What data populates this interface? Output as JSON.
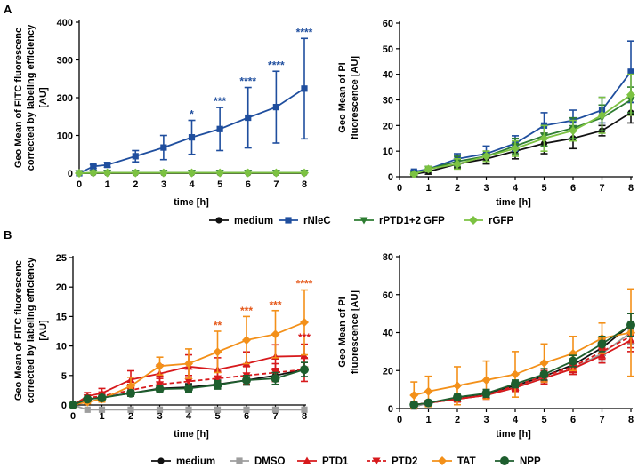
{
  "figure": {
    "panel_labels": [
      "A",
      "B"
    ],
    "time_label": "time [h]",
    "ylabel_fitc": [
      "Geo Mean of FITC fluorescenc",
      "corrected  by labeling efficiency",
      "[AU]"
    ],
    "ylabel_pi": [
      "Geo Mean of PI",
      "fluorescence [AU]"
    ],
    "legend_A": [
      {
        "name": "medium",
        "color": "#111111",
        "marker": "circle",
        "dash": false
      },
      {
        "name": "rNleC",
        "color": "#1f4e9e",
        "marker": "square",
        "dash": false
      },
      {
        "name": "rPTD1+2 GFP",
        "color": "#2e7d32",
        "marker": "triangle-down",
        "dash": false
      },
      {
        "name": "rGFP",
        "color": "#7cc242",
        "marker": "diamond",
        "dash": false
      }
    ],
    "legend_B": [
      {
        "name": "medium",
        "color": "#111111",
        "marker": "circle",
        "dash": false
      },
      {
        "name": "DMSO",
        "color": "#9e9e9e",
        "marker": "square",
        "dash": false
      },
      {
        "name": "PTD1",
        "color": "#d7191c",
        "marker": "triangle",
        "dash": false
      },
      {
        "name": "PTD2",
        "color": "#d7191c",
        "marker": "triangle-down",
        "dash": true
      },
      {
        "name": "TAT",
        "color": "#f39019",
        "marker": "diamond",
        "dash": false
      },
      {
        "name": "NPP",
        "color": "#1e5e2e",
        "marker": "circle-big",
        "dash": false
      }
    ]
  },
  "chart_data": [
    {
      "id": "A-left",
      "type": "line",
      "x": [
        0,
        0.5,
        1,
        2,
        3,
        4,
        5,
        6,
        7,
        8
      ],
      "xlim": [
        0,
        8
      ],
      "xticks": [
        0,
        1,
        2,
        3,
        4,
        5,
        6,
        7,
        8
      ],
      "ylim": [
        0,
        400
      ],
      "yticks": [
        0,
        100,
        200,
        300,
        400
      ],
      "xlabel": "time [h]",
      "ylabel": "Geo Mean of FITC fluorescenc corrected by labeling efficiency [AU]",
      "series": [
        {
          "name": "medium",
          "values": [
            0,
            0,
            0,
            0,
            0,
            0,
            0,
            0,
            0,
            0
          ],
          "errors": [
            0,
            0,
            0,
            0,
            0,
            0,
            0,
            0,
            0,
            0
          ]
        },
        {
          "name": "rNleC",
          "values": [
            0,
            18,
            22,
            45,
            68,
            95,
            117,
            147,
            175,
            224
          ],
          "errors": [
            0,
            5,
            6,
            15,
            32,
            45,
            57,
            80,
            95,
            133
          ]
        },
        {
          "name": "rPTD1+2 GFP",
          "values": [
            0,
            1,
            1,
            1,
            1,
            1,
            1,
            1,
            1,
            1
          ],
          "errors": [
            0,
            0,
            0,
            0,
            0,
            0,
            0,
            0,
            0,
            0
          ]
        },
        {
          "name": "rGFP",
          "values": [
            0,
            1,
            1,
            1,
            1,
            1,
            1,
            1,
            1,
            1
          ],
          "errors": [
            0,
            0,
            0,
            0,
            0,
            0,
            0,
            0,
            0,
            0
          ]
        }
      ],
      "annotations": [
        {
          "x": 4,
          "y": 140,
          "text": "*",
          "color": "#1f4e9e"
        },
        {
          "x": 5,
          "y": 174,
          "text": "***",
          "color": "#1f4e9e"
        },
        {
          "x": 6,
          "y": 227,
          "text": "****",
          "color": "#1f4e9e"
        },
        {
          "x": 7,
          "y": 270,
          "text": "****",
          "color": "#1f4e9e"
        },
        {
          "x": 8,
          "y": 357,
          "text": "****",
          "color": "#1f4e9e"
        }
      ]
    },
    {
      "id": "A-right",
      "type": "line",
      "x": [
        0.5,
        1,
        2,
        3,
        4,
        5,
        6,
        7,
        8
      ],
      "xlim": [
        0,
        8
      ],
      "xticks": [
        0,
        1,
        2,
        3,
        4,
        5,
        6,
        7,
        8
      ],
      "ylim": [
        0,
        60
      ],
      "yticks": [
        0,
        10,
        20,
        30,
        40,
        50,
        60
      ],
      "xlabel": "time [h]",
      "ylabel": "Geo Mean of PI fluorescence [AU]",
      "series": [
        {
          "name": "medium",
          "values": [
            1,
            2,
            5,
            7,
            10,
            13,
            15,
            18,
            25
          ],
          "errors": [
            0.5,
            1,
            1.5,
            2,
            3,
            4,
            4,
            2,
            4
          ]
        },
        {
          "name": "rNleC",
          "values": [
            2,
            3,
            7,
            9,
            13,
            20,
            22,
            26,
            41
          ],
          "errors": [
            0.5,
            1,
            2,
            3,
            3,
            5,
            4,
            5,
            12
          ]
        },
        {
          "name": "rPTD1+2 GFP",
          "values": [
            1,
            3,
            6,
            8,
            12,
            16,
            19,
            23,
            30
          ],
          "errors": [
            0.5,
            1,
            2,
            2,
            3,
            4,
            4,
            5,
            5
          ]
        },
        {
          "name": "rGFP",
          "values": [
            1,
            3,
            5,
            8,
            11,
            15,
            18,
            24,
            32
          ],
          "errors": [
            0.5,
            1,
            2,
            2,
            3,
            5,
            4,
            7,
            8
          ]
        }
      ],
      "annotations": []
    },
    {
      "id": "B-left",
      "type": "line",
      "x": [
        0,
        0.5,
        1,
        2,
        3,
        4,
        5,
        6,
        7,
        8
      ],
      "xlim": [
        0,
        8
      ],
      "xticks": [
        0,
        1,
        2,
        3,
        4,
        5,
        6,
        7,
        8
      ],
      "ylim": [
        0,
        25
      ],
      "yticks": [
        0,
        5,
        10,
        15,
        20,
        25
      ],
      "xlabel": "time [h]",
      "ylabel": "Geo Mean of FITC fluorescenc corrected by labeling efficiency [AU]",
      "series": [
        {
          "name": "medium",
          "values": [
            0,
            1,
            1.3,
            2,
            2.8,
            3,
            3.5,
            4.2,
            5,
            6
          ],
          "errors": [
            0,
            0.3,
            0.4,
            0.5,
            0.6,
            0.6,
            0.7,
            0.8,
            1,
            1.2
          ]
        },
        {
          "name": "DMSO",
          "values": [
            0,
            -0.8,
            -0.8,
            -0.8,
            -0.8,
            -0.8,
            -0.8,
            -0.8,
            -0.8,
            -0.8
          ],
          "errors": [
            0,
            0,
            0,
            0,
            0,
            0,
            0,
            0,
            0,
            0
          ]
        },
        {
          "name": "PTD1",
          "values": [
            0,
            1.5,
            2,
            4.3,
            5.3,
            6.5,
            6,
            7,
            8.2,
            8.3
          ],
          "errors": [
            0,
            0.6,
            0.8,
            1.5,
            1.5,
            2,
            2,
            2,
            2,
            2
          ]
        },
        {
          "name": "PTD2",
          "values": [
            0,
            1.2,
            1.5,
            2.5,
            3.5,
            4,
            4.5,
            5,
            5.5,
            6
          ],
          "errors": [
            0,
            0.5,
            0.7,
            1,
            1,
            1,
            1.2,
            1.5,
            1.5,
            2
          ]
        },
        {
          "name": "TAT",
          "values": [
            0,
            0.5,
            1,
            3.2,
            6.6,
            7,
            9,
            11,
            12,
            14
          ],
          "errors": [
            0,
            0.3,
            0.5,
            1.5,
            1.5,
            2.5,
            3.5,
            4,
            4,
            5.5
          ]
        },
        {
          "name": "NPP",
          "values": [
            0,
            1,
            1.2,
            2,
            2.7,
            2.8,
            3.4,
            4.2,
            4.5,
            6
          ],
          "errors": [
            0,
            0.3,
            0.4,
            0.5,
            0.6,
            0.6,
            0.7,
            0.8,
            1,
            1.2
          ]
        }
      ],
      "annotations": [
        {
          "x": 5,
          "y": 12.4,
          "text": "**",
          "color": "#e5581a"
        },
        {
          "x": 6,
          "y": 14.9,
          "text": "***",
          "color": "#e5581a"
        },
        {
          "x": 7,
          "y": 15.9,
          "text": "***",
          "color": "#e5581a"
        },
        {
          "x": 8,
          "y": 19.5,
          "text": "****",
          "color": "#e5581a"
        },
        {
          "x": 8,
          "y": 10.4,
          "text": "***",
          "color": "#d7191c"
        }
      ]
    },
    {
      "id": "B-right",
      "type": "line",
      "x": [
        0.5,
        1,
        2,
        3,
        4,
        5,
        6,
        7,
        8
      ],
      "xlim": [
        0,
        8
      ],
      "xticks": [
        0,
        1,
        2,
        3,
        4,
        5,
        6,
        7,
        8
      ],
      "ylim": [
        0,
        80
      ],
      "yticks": [
        0,
        20,
        40,
        60,
        80
      ],
      "xlabel": "time [h]",
      "ylabel": "Geo Mean of PI fluorescence [AU]",
      "series": [
        {
          "name": "medium",
          "values": [
            1,
            3,
            5,
            8,
            12,
            17,
            23,
            32,
            44
          ],
          "errors": [
            0.5,
            1,
            1.5,
            2,
            2,
            3,
            3,
            4,
            6
          ]
        },
        {
          "name": "DMSO",
          "values": [
            1,
            3,
            5,
            7,
            11,
            16,
            21,
            29,
            40
          ],
          "errors": [
            0.5,
            1,
            1.5,
            2,
            2,
            3,
            3,
            4,
            6
          ]
        },
        {
          "name": "PTD1",
          "values": [
            2,
            3,
            5,
            7,
            11,
            16,
            21,
            28,
            36
          ],
          "errors": [
            0.5,
            1,
            1.5,
            2,
            2,
            3,
            3,
            4,
            6
          ]
        },
        {
          "name": "PTD2",
          "values": [
            2,
            3,
            5,
            7,
            12,
            17,
            22,
            30,
            38
          ],
          "errors": [
            0.5,
            1,
            1.5,
            2,
            2,
            3,
            3,
            4,
            6
          ]
        },
        {
          "name": "TAT",
          "values": [
            7,
            9,
            12,
            15,
            18,
            24,
            29,
            37,
            40
          ],
          "errors": [
            7,
            8,
            10,
            10,
            12,
            10,
            9,
            8,
            23
          ]
        },
        {
          "name": "NPP",
          "values": [
            2,
            3,
            6,
            8,
            13,
            18,
            25,
            34,
            44
          ],
          "errors": [
            0.5,
            1,
            1.5,
            2,
            2,
            3,
            3,
            4,
            6
          ]
        }
      ],
      "annotations": []
    }
  ]
}
